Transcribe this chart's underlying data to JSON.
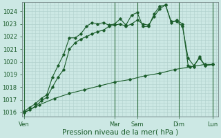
{
  "background_color": "#cce8e4",
  "grid_color": "#b0d0cc",
  "line_color": "#1a5c2a",
  "marker_color": "#1a5c2a",
  "ylabel_values": [
    1016,
    1017,
    1018,
    1019,
    1020,
    1021,
    1022,
    1023,
    1024
  ],
  "ylim": [
    1015.7,
    1024.7
  ],
  "xlabel": "Pression niveau de la mer( hPa )",
  "xlabel_fontsize": 7.5,
  "tick_fontsize": 6.0,
  "xtick_labels": [
    "Ven",
    "Mar",
    "Sam",
    "Dim",
    "Lun"
  ],
  "xtick_positions": [
    0,
    48,
    60,
    82,
    100
  ],
  "vline_positions": [
    0,
    48,
    60,
    82,
    100
  ],
  "line1_x": [
    0,
    3,
    6,
    9,
    12,
    15,
    18,
    21,
    24,
    27,
    30,
    33,
    36,
    39,
    42,
    45,
    48,
    51,
    54,
    57,
    60,
    63,
    66,
    69,
    72,
    75,
    78,
    81,
    84,
    87,
    90,
    93,
    96,
    100
  ],
  "line1_y": [
    1016.1,
    1016.4,
    1016.7,
    1017.1,
    1017.4,
    1018.8,
    1019.7,
    1020.6,
    1021.9,
    1021.9,
    1022.2,
    1022.8,
    1023.1,
    1023.0,
    1023.1,
    1022.9,
    1023.0,
    1023.4,
    1022.9,
    1023.7,
    1023.9,
    1022.8,
    1022.8,
    1023.8,
    1024.4,
    1024.5,
    1023.2,
    1023.2,
    1022.8,
    1020.3,
    1019.7,
    1020.3,
    1019.7,
    1019.8
  ],
  "line2_x": [
    0,
    3,
    6,
    9,
    12,
    15,
    18,
    21,
    24,
    27,
    30,
    33,
    36,
    39,
    42,
    45,
    48,
    51,
    54,
    57,
    60,
    63,
    66,
    69,
    72,
    75,
    78,
    81,
    84,
    87,
    90,
    93,
    96,
    100
  ],
  "line2_y": [
    1016.0,
    1016.2,
    1016.5,
    1016.9,
    1017.2,
    1018.0,
    1018.8,
    1019.4,
    1021.0,
    1021.5,
    1021.8,
    1022.0,
    1022.2,
    1022.4,
    1022.5,
    1022.8,
    1022.9,
    1023.0,
    1022.8,
    1023.0,
    1023.3,
    1023.0,
    1022.9,
    1023.6,
    1024.2,
    1024.5,
    1023.1,
    1023.3,
    1023.0,
    1019.7,
    1019.6,
    1020.4,
    1019.7,
    1019.8
  ],
  "line3_x": [
    0,
    8,
    16,
    24,
    32,
    40,
    48,
    56,
    64,
    72,
    80,
    88,
    96,
    100
  ],
  "line3_y": [
    1016.0,
    1016.6,
    1017.1,
    1017.5,
    1017.8,
    1018.1,
    1018.4,
    1018.6,
    1018.9,
    1019.1,
    1019.4,
    1019.6,
    1019.8,
    1019.8
  ]
}
